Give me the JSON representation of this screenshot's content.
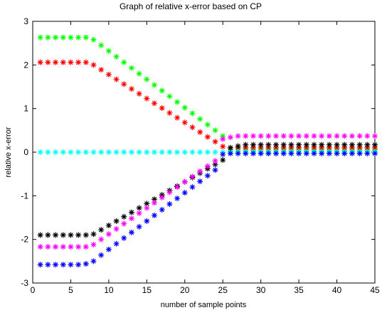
{
  "chart_data": {
    "type": "scatter",
    "title": "Graph of relative x-error based on CP",
    "xlabel": "number of sample points",
    "ylabel": "relative x-error",
    "xlim": [
      0,
      45
    ],
    "ylim": [
      -3,
      3
    ],
    "xticks": [
      0,
      5,
      10,
      15,
      20,
      25,
      30,
      35,
      40,
      45
    ],
    "yticks": [
      -3,
      -2,
      -1,
      0,
      1,
      2,
      3
    ],
    "grid": false,
    "marker": "*",
    "x": [
      1,
      2,
      3,
      4,
      5,
      6,
      7,
      8,
      9,
      10,
      11,
      12,
      13,
      14,
      15,
      16,
      17,
      18,
      19,
      20,
      21,
      22,
      23,
      24,
      25,
      26,
      27,
      28,
      29,
      30,
      31,
      32,
      33,
      34,
      35,
      36,
      37,
      38,
      39,
      40,
      41,
      42,
      43,
      44,
      45
    ],
    "series": [
      {
        "color": "#00ff00",
        "values": [
          2.63,
          2.63,
          2.63,
          2.63,
          2.63,
          2.63,
          2.63,
          2.58,
          2.45,
          2.32,
          2.19,
          2.06,
          1.93,
          1.8,
          1.67,
          1.54,
          1.41,
          1.28,
          1.15,
          1.02,
          0.89,
          0.76,
          0.63,
          0.5,
          0.37,
          0.05,
          0.05,
          0.05,
          0.05,
          0.05,
          0.05,
          0.05,
          0.05,
          0.05,
          0.05,
          0.05,
          0.05,
          0.05,
          0.05,
          0.05,
          0.05,
          0.05,
          0.05,
          0.05,
          0.05
        ]
      },
      {
        "color": "#ff0000",
        "values": [
          2.06,
          2.06,
          2.06,
          2.06,
          2.06,
          2.06,
          2.06,
          2.0,
          1.89,
          1.78,
          1.67,
          1.56,
          1.45,
          1.34,
          1.23,
          1.12,
          1.01,
          0.9,
          0.79,
          0.68,
          0.57,
          0.46,
          0.35,
          0.24,
          0.13,
          0.1,
          0.1,
          0.1,
          0.1,
          0.1,
          0.1,
          0.1,
          0.1,
          0.1,
          0.1,
          0.1,
          0.1,
          0.1,
          0.1,
          0.1,
          0.1,
          0.1,
          0.1,
          0.1,
          0.1
        ]
      },
      {
        "color": "#00ffff",
        "values": [
          0,
          0,
          0,
          0,
          0,
          0,
          0,
          0,
          0,
          0,
          0,
          0,
          0,
          0,
          0,
          0,
          0,
          0,
          0,
          0,
          0,
          0,
          0,
          0,
          0,
          0,
          0,
          0,
          0,
          0,
          0,
          0,
          0,
          0,
          0,
          0,
          0,
          0,
          0,
          0,
          0,
          0,
          0,
          0,
          0
        ]
      },
      {
        "color": "#000000",
        "values": [
          -1.9,
          -1.9,
          -1.9,
          -1.9,
          -1.9,
          -1.9,
          -1.9,
          -1.88,
          -1.78,
          -1.68,
          -1.58,
          -1.48,
          -1.38,
          -1.28,
          -1.18,
          -1.08,
          -0.98,
          -0.88,
          -0.78,
          -0.68,
          -0.58,
          -0.48,
          -0.38,
          -0.28,
          -0.18,
          0.1,
          0.14,
          0.17,
          0.17,
          0.17,
          0.17,
          0.17,
          0.17,
          0.17,
          0.17,
          0.17,
          0.17,
          0.17,
          0.17,
          0.17,
          0.17,
          0.17,
          0.17,
          0.17,
          0.17
        ]
      },
      {
        "color": "#ff00ff",
        "values": [
          -2.17,
          -2.17,
          -2.17,
          -2.17,
          -2.17,
          -2.17,
          -2.17,
          -2.12,
          -2.0,
          -1.88,
          -1.76,
          -1.64,
          -1.52,
          -1.4,
          -1.28,
          -1.16,
          -1.04,
          -0.92,
          -0.8,
          -0.68,
          -0.56,
          -0.44,
          -0.32,
          -0.2,
          0.3,
          0.34,
          0.37,
          0.37,
          0.37,
          0.37,
          0.37,
          0.37,
          0.37,
          0.37,
          0.37,
          0.37,
          0.37,
          0.37,
          0.37,
          0.37,
          0.37,
          0.37,
          0.37,
          0.37,
          0.37
        ]
      },
      {
        "color": "#0000ff",
        "values": [
          -2.58,
          -2.58,
          -2.58,
          -2.58,
          -2.58,
          -2.58,
          -2.56,
          -2.5,
          -2.36,
          -2.23,
          -2.1,
          -1.97,
          -1.84,
          -1.71,
          -1.58,
          -1.45,
          -1.32,
          -1.19,
          -1.06,
          -0.93,
          -0.8,
          -0.67,
          -0.54,
          -0.41,
          -0.05,
          -0.03,
          -0.03,
          -0.03,
          -0.03,
          -0.03,
          -0.03,
          -0.03,
          -0.03,
          -0.03,
          -0.03,
          -0.03,
          -0.03,
          -0.03,
          -0.03,
          -0.03,
          -0.03,
          -0.03,
          -0.03,
          -0.03,
          -0.03
        ]
      }
    ]
  }
}
